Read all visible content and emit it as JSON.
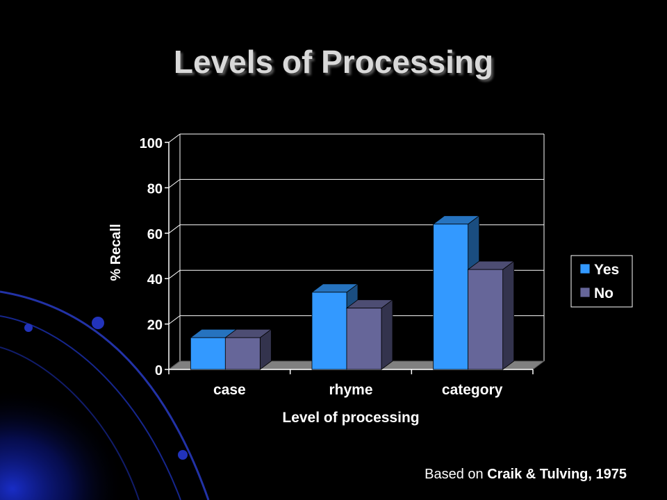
{
  "slide": {
    "title": "Levels of Processing",
    "footer_prefix": "Based on",
    "footer_citation": "Craik & Tulving, 1975"
  },
  "colors": {
    "background": "#000000",
    "yes": "#3399ff",
    "no": "#666699",
    "floor": "#808080",
    "swoosh": "#0a1a8c"
  },
  "chart_data": {
    "type": "bar",
    "xlabel": "Level of processing",
    "ylabel": "% Recall",
    "ylim": [
      0,
      100
    ],
    "yticks": [
      0,
      20,
      40,
      60,
      80,
      100
    ],
    "grid": true,
    "legend": "right",
    "style": "3d-clustered",
    "categories": [
      "case",
      "rhyme",
      "category"
    ],
    "series": [
      {
        "name": "Yes",
        "values": [
          14,
          34,
          64
        ],
        "color": "#3399ff"
      },
      {
        "name": "No",
        "values": [
          14,
          27,
          44
        ],
        "color": "#666699"
      }
    ]
  }
}
